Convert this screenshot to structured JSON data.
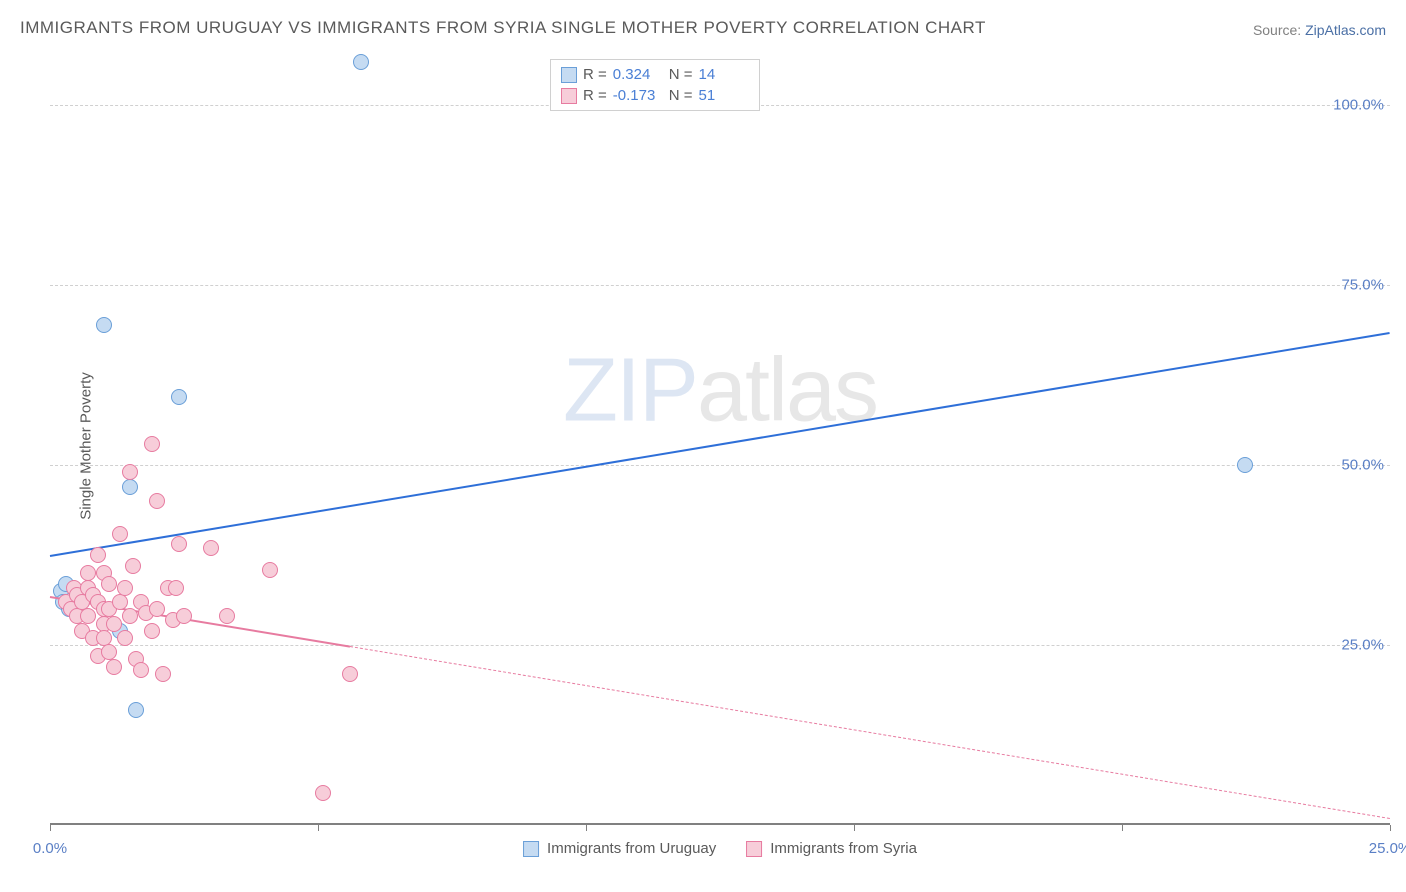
{
  "title": "IMMIGRANTS FROM URUGUAY VS IMMIGRANTS FROM SYRIA SINGLE MOTHER POVERTY CORRELATION CHART",
  "source_label": "Source: ",
  "source_link": "ZipAtlas.com",
  "ylabel": "Single Mother Poverty",
  "watermark_z": "ZIP",
  "watermark_rest": "atlas",
  "chart": {
    "type": "scatter",
    "xlim": [
      0,
      25
    ],
    "ylim": [
      0,
      107
    ],
    "y_ticks": [
      25,
      50,
      75,
      100
    ],
    "y_tick_labels": [
      "25.0%",
      "50.0%",
      "75.0%",
      "100.0%"
    ],
    "x_ticks": [
      0,
      5,
      10,
      15,
      20,
      25
    ],
    "x_tick_labels": [
      "0.0%",
      "",
      "",
      "",
      "",
      "25.0%"
    ],
    "background_color": "#ffffff",
    "grid_color": "#d0d0d0",
    "series": [
      {
        "name": "Immigrants from Uruguay",
        "marker_fill": "#c5dbf2",
        "marker_stroke": "#6a9fd8",
        "marker_radius": 8,
        "trend_color": "#2e6fd8",
        "trend_solid_xrange": [
          0,
          25
        ],
        "trend_dashed_xrange": null,
        "trend_y_at_xmin": 37.5,
        "trend_y_at_xmax": 68.5,
        "r": "0.324",
        "n": "14",
        "points": [
          [
            0.2,
            32.5
          ],
          [
            0.25,
            31
          ],
          [
            0.3,
            33.5
          ],
          [
            0.35,
            30
          ],
          [
            0.5,
            32
          ],
          [
            1.0,
            69.5
          ],
          [
            1.3,
            27
          ],
          [
            1.5,
            47
          ],
          [
            1.6,
            16
          ],
          [
            2.4,
            59.5
          ],
          [
            5.8,
            106
          ],
          [
            22.3,
            50
          ]
        ]
      },
      {
        "name": "Immigrants from Syria",
        "marker_fill": "#f7cdd9",
        "marker_stroke": "#e77ba0",
        "marker_radius": 8,
        "trend_color": "#e77ba0",
        "trend_solid_xrange": [
          0,
          5.6
        ],
        "trend_dashed_xrange": [
          5.6,
          25
        ],
        "trend_y_at_xmin": 31.8,
        "trend_y_at_xmax": 1.0,
        "r": "-0.173",
        "n": "51",
        "points": [
          [
            0.3,
            31
          ],
          [
            0.4,
            30
          ],
          [
            0.45,
            33
          ],
          [
            0.5,
            29
          ],
          [
            0.5,
            32
          ],
          [
            0.6,
            31
          ],
          [
            0.6,
            27
          ],
          [
            0.7,
            33
          ],
          [
            0.7,
            35
          ],
          [
            0.7,
            29
          ],
          [
            0.8,
            32
          ],
          [
            0.8,
            26
          ],
          [
            0.9,
            23.5
          ],
          [
            0.9,
            31
          ],
          [
            0.9,
            37.5
          ],
          [
            1.0,
            35
          ],
          [
            1.0,
            30
          ],
          [
            1.0,
            28
          ],
          [
            1.0,
            26
          ],
          [
            1.1,
            24
          ],
          [
            1.1,
            30
          ],
          [
            1.1,
            33.5
          ],
          [
            1.2,
            28
          ],
          [
            1.2,
            22
          ],
          [
            1.3,
            40.5
          ],
          [
            1.3,
            31
          ],
          [
            1.4,
            26
          ],
          [
            1.4,
            33
          ],
          [
            1.5,
            29
          ],
          [
            1.5,
            49
          ],
          [
            1.55,
            36
          ],
          [
            1.6,
            23
          ],
          [
            1.7,
            31
          ],
          [
            1.7,
            21.5
          ],
          [
            1.8,
            29.5
          ],
          [
            1.9,
            53
          ],
          [
            1.9,
            27
          ],
          [
            2.0,
            45
          ],
          [
            2.0,
            30
          ],
          [
            2.1,
            21
          ],
          [
            2.2,
            33
          ],
          [
            2.3,
            28.5
          ],
          [
            2.35,
            33
          ],
          [
            2.4,
            39
          ],
          [
            2.5,
            29
          ],
          [
            3.0,
            38.5
          ],
          [
            3.3,
            29
          ],
          [
            4.1,
            35.5
          ],
          [
            5.1,
            4.5
          ],
          [
            5.6,
            21
          ]
        ]
      }
    ],
    "legend_top_labels": {
      "R": "R =",
      "N": "N ="
    },
    "legend_bottom": [
      {
        "label": "Immigrants from Uruguay",
        "fill": "#c5dbf2",
        "stroke": "#6a9fd8"
      },
      {
        "label": "Immigrants from Syria",
        "fill": "#f7cdd9",
        "stroke": "#e77ba0"
      }
    ]
  }
}
